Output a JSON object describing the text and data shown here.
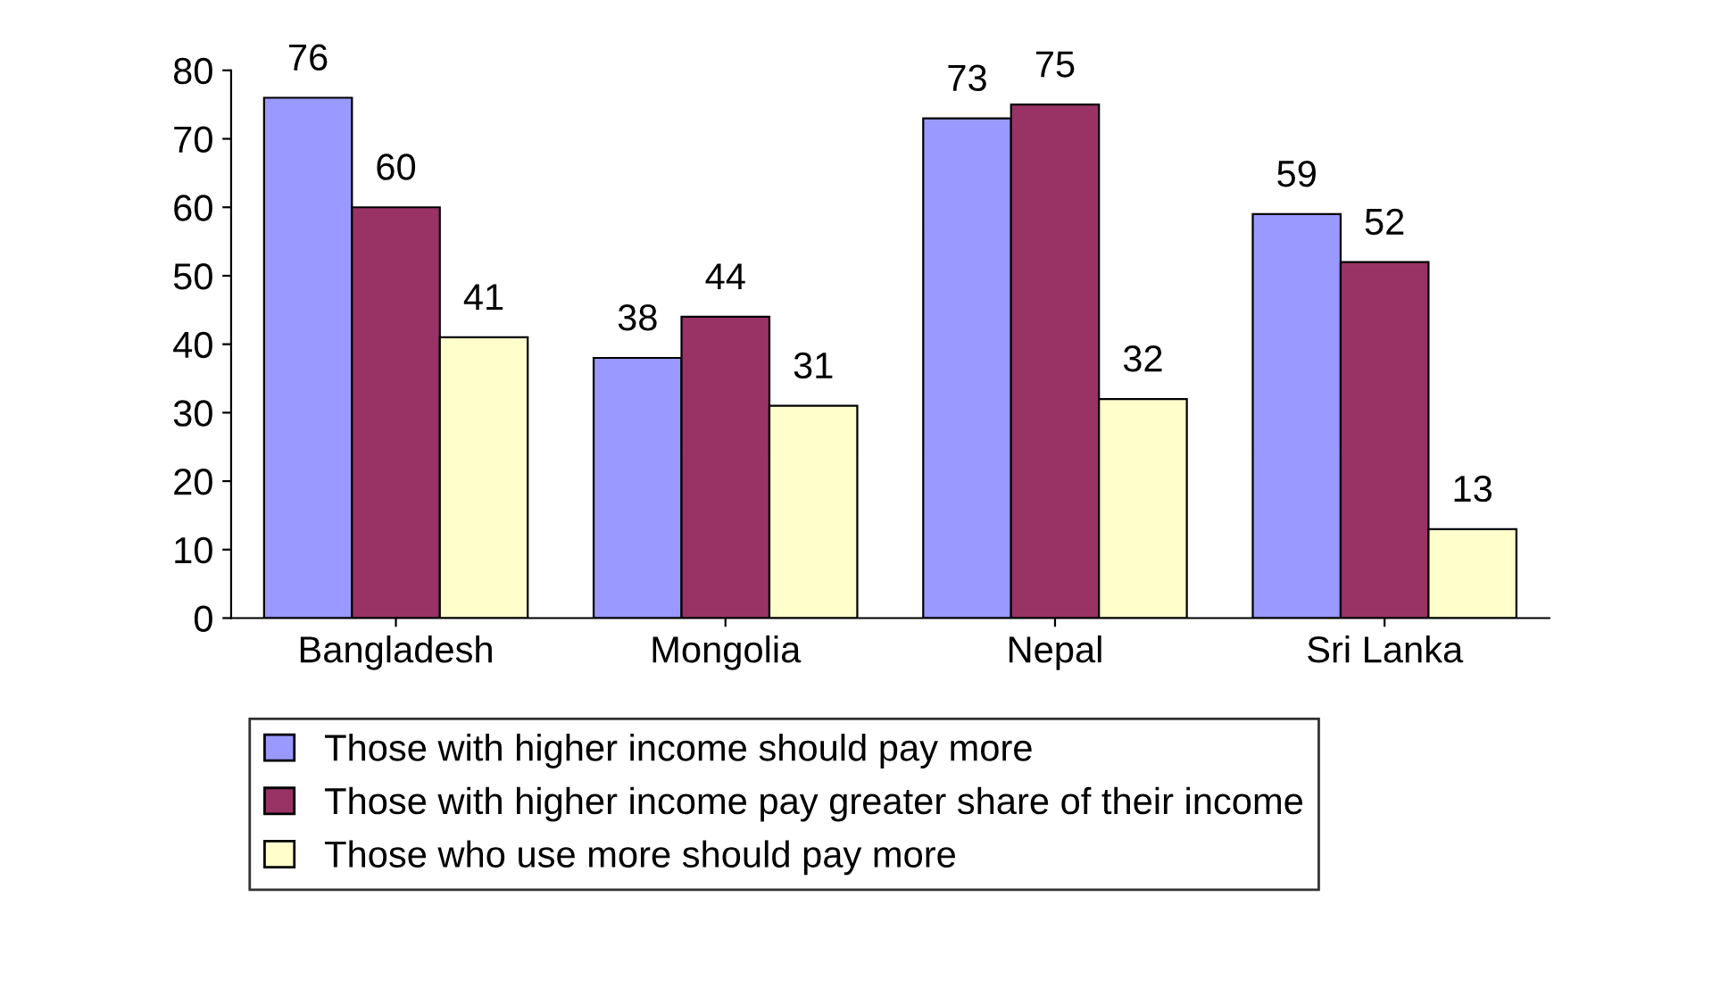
{
  "chart_data": {
    "type": "bar",
    "categories": [
      "Bangladesh",
      "Mongolia",
      "Nepal",
      "Sri Lanka"
    ],
    "series": [
      {
        "name": "Those with higher income should pay more",
        "color": "#9999ff",
        "values": [
          76,
          38,
          73,
          59
        ]
      },
      {
        "name": "Those with higher income pay greater share of their income",
        "color": "#993366",
        "values": [
          60,
          44,
          75,
          52
        ]
      },
      {
        "name": "Those who use more should pay more",
        "color": "#ffffcc",
        "values": [
          41,
          31,
          32,
          13
        ]
      }
    ],
    "ylim": [
      0,
      80
    ],
    "yticks": [
      0,
      10,
      20,
      30,
      40,
      50,
      60,
      70,
      80
    ],
    "grid": false,
    "legend": "bottom",
    "data_labels": true
  }
}
